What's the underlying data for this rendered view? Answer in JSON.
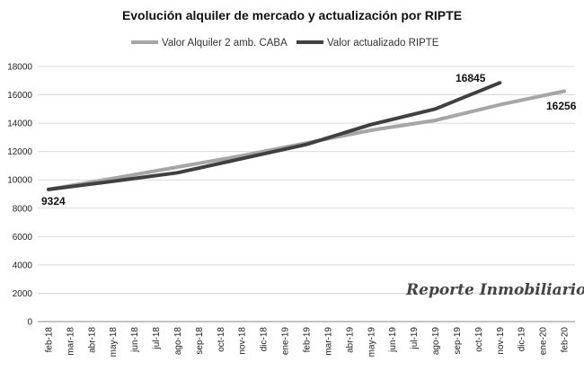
{
  "chart_data": {
    "type": "line",
    "title": "Evolución alquiler de mercado y actualización por RIPTE",
    "xlabel": "",
    "ylabel": "",
    "ylim": [
      0,
      18000
    ],
    "yticks": [
      0,
      2000,
      4000,
      6000,
      8000,
      10000,
      12000,
      14000,
      16000,
      18000
    ],
    "grid": true,
    "legend_position": "top",
    "categories": [
      "feb-18",
      "mar-18",
      "abr-18",
      "may-18",
      "jun-18",
      "jul-18",
      "ago-18",
      "sep-18",
      "oct-18",
      "nov-18",
      "dic-18",
      "ene-19",
      "feb-19",
      "mar-19",
      "abr-19",
      "may-19",
      "jun-19",
      "jul-19",
      "ago-19",
      "sep-19",
      "oct-19",
      "nov-19",
      "dic-19",
      "ene-20",
      "feb-20"
    ],
    "series": [
      {
        "name": "Valor Alquiler 2 amb. CABA",
        "color": "#a6a6a6",
        "values": [
          9324,
          null,
          null,
          10100,
          null,
          null,
          10900,
          null,
          null,
          11700,
          null,
          null,
          12600,
          null,
          null,
          13500,
          null,
          null,
          14200,
          null,
          null,
          15300,
          null,
          null,
          16256
        ]
      },
      {
        "name": "Valor actualizado RIPTE",
        "color": "#404040",
        "values": [
          9324,
          null,
          null,
          9900,
          null,
          null,
          10500,
          null,
          null,
          11500,
          null,
          null,
          12500,
          null,
          null,
          13900,
          null,
          null,
          15000,
          null,
          null,
          16845,
          null,
          null,
          null
        ]
      }
    ],
    "data_labels": [
      "9324",
      "16845",
      "16256"
    ]
  },
  "watermark": "Reporte Inmobiliario"
}
